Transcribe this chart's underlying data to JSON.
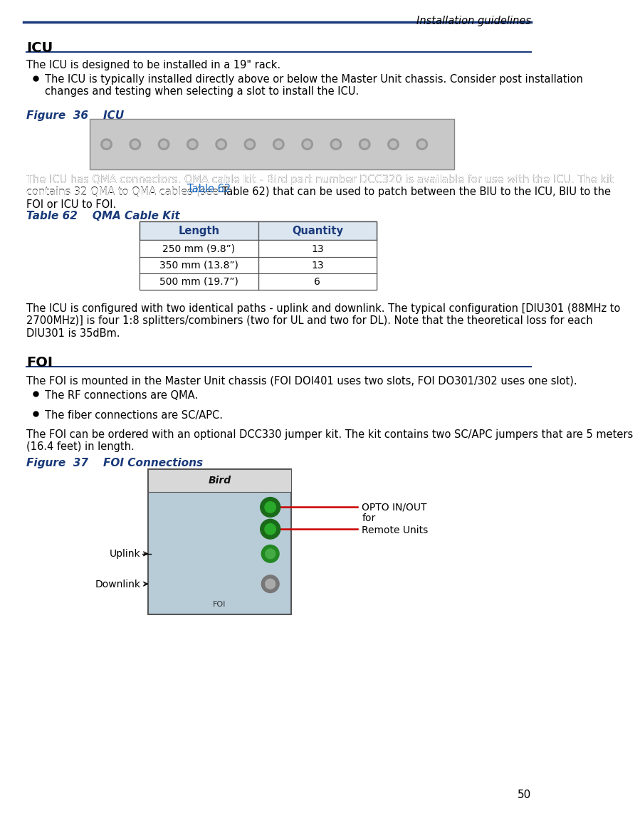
{
  "header_text": "Installation guidelines",
  "header_line_color": "#1a3a7a",
  "page_number": "50",
  "bg_color": "#ffffff",
  "text_color": "#000000",
  "blue_color": "#1a3a7a",
  "link_color": "#1a6abf",
  "section_icu_title": "ICU",
  "section_foi_title": "FOI",
  "fig36_label": "Figure  36    ICU",
  "fig37_label": "Figure  37    FOI Connections",
  "table_label": "Table 62    QMA Cable Kit",
  "table_headers": [
    "Length",
    "Quantity"
  ],
  "table_rows": [
    [
      "250 mm (9.8”)",
      "13"
    ],
    [
      "350 mm (13.8”)",
      "13"
    ],
    [
      "500 mm (19.7”)",
      "6"
    ]
  ],
  "para1": "The ICU is designed to be installed in a 19\" rack.",
  "bullet1": "The ICU is typically installed directly above or below the Master Unit chassis. Consider post installation\nchanges and testing when selecting a slot to install the ICU.",
  "para2_full": "The ICU has QMA connectors. QMA cable kit - Bird part number DCC320 is available for use with the ICU. The kit\ncontains 32 QMA to QMA cables (see Table 62) that can be used to patch between the BIU to the ICU, BIU to the\nFOI or ICU to FOI.",
  "para2_link": "Table 62",
  "para3": "The ICU is configured with two identical paths - uplink and downlink. The typical configuration [DIU301 (88MHz to\n2700MHz)] is four 1:8 splitters/combiners (two for UL and two for DL). Note that the theoretical loss for each\nDIU301 is 35dBm.",
  "foi_para1": "The FOI is mounted in the Master Unit chassis (FOI DOI401 uses two slots, FOI DO301/302 uses one slot).",
  "foi_bullet1": "The RF connections are QMA.",
  "foi_bullet2": "The fiber connections are SC/APC.",
  "foi_para2": "The FOI can be ordered with an optional DCC330 jumper kit. The kit contains two SC/APC jumpers that are 5 meters\n(16.4 feet) in length.",
  "opto_label": "OPTO IN/OUT\nfor\nRemote Units",
  "uplink_label": "Uplink",
  "downlink_label": "Downlink"
}
